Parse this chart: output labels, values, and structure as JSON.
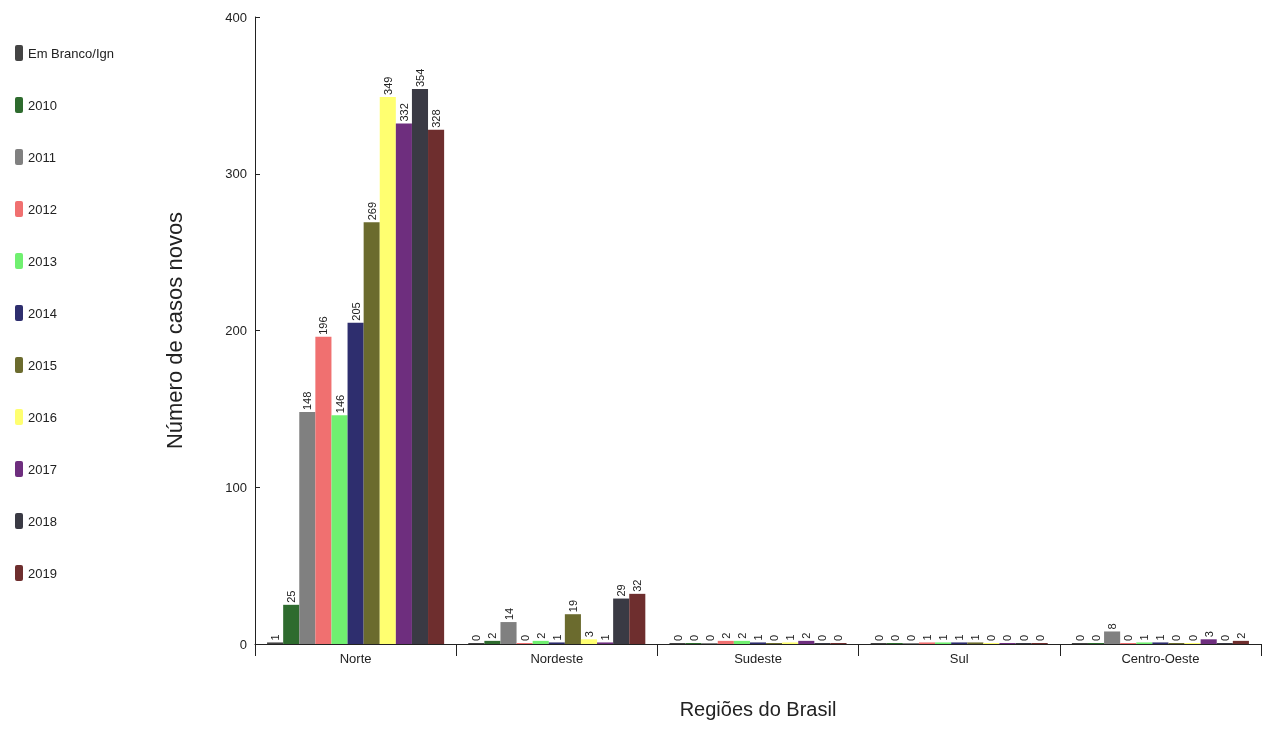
{
  "chart_data": {
    "type": "bar",
    "xlabel": "Regiões do Brasil",
    "ylabel": "Número de casos novos",
    "categories": [
      "Norte",
      "Nordeste",
      "Sudeste",
      "Sul",
      "Centro-Oeste"
    ],
    "series": [
      {
        "name": "Em Branco/Ign",
        "color": "#444444",
        "values": [
          1,
          0,
          0,
          0,
          0
        ]
      },
      {
        "name": "2010",
        "color": "#2e6b2e",
        "values": [
          25,
          2,
          0,
          0,
          0
        ]
      },
      {
        "name": "2011",
        "color": "#808080",
        "values": [
          148,
          14,
          0,
          0,
          8
        ]
      },
      {
        "name": "2012",
        "color": "#f07070",
        "values": [
          196,
          0,
          2,
          1,
          0
        ]
      },
      {
        "name": "2013",
        "color": "#70f070",
        "values": [
          146,
          2,
          2,
          1,
          1
        ]
      },
      {
        "name": "2014",
        "color": "#2e2e6e",
        "values": [
          205,
          1,
          1,
          1,
          1
        ]
      },
      {
        "name": "2015",
        "color": "#6b6b2e",
        "values": [
          269,
          19,
          0,
          1,
          0
        ]
      },
      {
        "name": "2016",
        "color": "#ffff70",
        "values": [
          349,
          3,
          1,
          0,
          0
        ]
      },
      {
        "name": "2017",
        "color": "#6e2e7e",
        "values": [
          332,
          1,
          2,
          0,
          3
        ]
      },
      {
        "name": "2018",
        "color": "#3a3a44",
        "values": [
          354,
          29,
          0,
          0,
          0
        ]
      },
      {
        "name": "2019",
        "color": "#6e2e2e",
        "values": [
          328,
          32,
          0,
          0,
          2
        ]
      }
    ],
    "ylim": [
      0,
      400
    ],
    "yticks": [
      0,
      100,
      200,
      300,
      400
    ],
    "grid": false,
    "legend": "left",
    "data_labels": true
  }
}
